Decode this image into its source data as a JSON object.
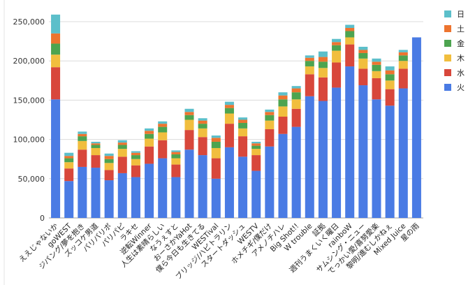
{
  "chart_data": {
    "type": "bar",
    "stacked": true,
    "title": "",
    "xlabel": "",
    "ylabel": "",
    "ylim": [
      0,
      260000
    ],
    "yticks": [
      0,
      50000,
      100000,
      150000,
      200000,
      250000
    ],
    "ytick_labels": [
      "0",
      "50,000",
      "100,000",
      "150,000",
      "200,000",
      "250,000"
    ],
    "grid": true,
    "legend_position": "right",
    "categories": [
      "ええじゃないか",
      "goWEST",
      "ジパング/夢を抱き",
      "ズッコケ男道",
      "バリバリボ",
      "パリパピ",
      "ラキセ",
      "逆転Winner",
      "人生は素晴らしい",
      "なうぇすと",
      "おーさかYaHot",
      "僕ら今日も生きてる",
      "WESTival",
      "ブリッジ/ハピトラリン",
      "スタートダッシュ",
      "WESTV",
      "ホメチギ/僕だけ",
      "アメノチハレ",
      "Big Shot!!",
      "W trouble",
      "証拠",
      "週刊うまくいく曜日",
      "rainboW",
      "サムシング・ニュー",
      "でっかい愛/喜努愛楽",
      "黎明/進むしかねぇ",
      "Mixed Juice",
      "星の雨"
    ],
    "series": [
      {
        "name": "火",
        "color": "#4A7BE4",
        "values": [
          151000,
          47000,
          65000,
          64000,
          48000,
          57000,
          52000,
          69000,
          76000,
          52000,
          87000,
          80000,
          50000,
          90000,
          78000,
          60000,
          91000,
          107000,
          116000,
          155000,
          149000,
          166000,
          193000,
          169000,
          151000,
          143000,
          165000,
          230000
        ]
      },
      {
        "name": "水",
        "color": "#D8473B",
        "values": [
          41000,
          16000,
          22000,
          16000,
          13000,
          21000,
          15000,
          22000,
          23000,
          16000,
          25000,
          23000,
          26000,
          30000,
          26000,
          20000,
          22000,
          22000,
          23000,
          28000,
          30000,
          32000,
          28000,
          21000,
          27000,
          21000,
          25000,
          0
        ]
      },
      {
        "name": "木",
        "color": "#F1BE3E",
        "values": [
          16000,
          8000,
          11000,
          9000,
          9000,
          10000,
          8000,
          10000,
          10000,
          8000,
          13000,
          11000,
          13000,
          13000,
          10000,
          8000,
          11000,
          13000,
          12000,
          10000,
          12000,
          15000,
          9000,
          13000,
          9000,
          11000,
          10000,
          0
        ]
      },
      {
        "name": "金",
        "color": "#4DA450",
        "values": [
          14000,
          5000,
          6000,
          4000,
          5000,
          5000,
          5000,
          6000,
          7000,
          5000,
          6000,
          6000,
          8000,
          7000,
          7000,
          4000,
          7000,
          9000,
          9000,
          7000,
          8000,
          7000,
          8000,
          7000,
          8000,
          8000,
          7000,
          0
        ]
      },
      {
        "name": "土",
        "color": "#ED742F",
        "values": [
          13000,
          3000,
          3000,
          2000,
          4000,
          3000,
          3000,
          4000,
          4000,
          3000,
          4000,
          4000,
          5000,
          4000,
          4000,
          3000,
          4000,
          5000,
          5000,
          4000,
          6000,
          4000,
          4000,
          4000,
          4000,
          5000,
          4000,
          0
        ]
      },
      {
        "name": "日",
        "color": "#5CBFCA",
        "values": [
          24000,
          4000,
          3000,
          2000,
          3000,
          3000,
          2000,
          3000,
          3000,
          2000,
          4000,
          3000,
          3000,
          4000,
          3000,
          2000,
          3000,
          4000,
          3000,
          3000,
          7000,
          4000,
          4000,
          4000,
          4000,
          5000,
          3000,
          0
        ]
      }
    ]
  }
}
